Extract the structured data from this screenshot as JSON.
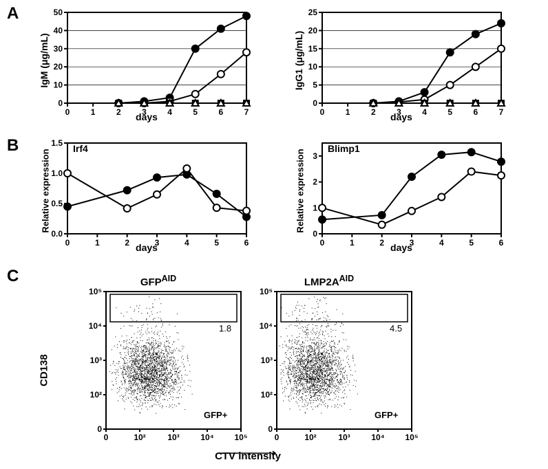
{
  "panelA": {
    "label": "A",
    "igm": {
      "ylabel": "IgM (μg/mL)",
      "xlabel": "days",
      "xlim": [
        0,
        7
      ],
      "ylim": [
        0,
        50
      ],
      "ytick_step": 10,
      "xtick_step": 1,
      "x": [
        2,
        3,
        4,
        5,
        6,
        7
      ],
      "series": [
        {
          "name": "filled-circle",
          "marker": "●",
          "color": "#000000",
          "fill": "#000000",
          "y": [
            0,
            1,
            3,
            30,
            41,
            48
          ]
        },
        {
          "name": "open-circle",
          "marker": "○",
          "color": "#000000",
          "fill": "#ffffff",
          "y": [
            0,
            0,
            1,
            5,
            16,
            28
          ]
        },
        {
          "name": "filled-square",
          "marker": "■",
          "color": "#000000",
          "fill": "#000000",
          "y": [
            0,
            0,
            0,
            0,
            0,
            0
          ]
        },
        {
          "name": "open-triangle",
          "marker": "△",
          "color": "#000000",
          "fill": "#ffffff",
          "y": [
            0,
            0,
            0,
            0,
            0,
            0
          ]
        }
      ]
    },
    "igg1": {
      "ylabel": "IgG1 (μg/mL)",
      "xlabel": "days",
      "xlim": [
        0,
        7
      ],
      "ylim": [
        0,
        25
      ],
      "ytick_step": 5,
      "xtick_step": 1,
      "x": [
        2,
        3,
        4,
        5,
        6,
        7
      ],
      "series": [
        {
          "name": "filled-circle",
          "marker": "●",
          "color": "#000000",
          "fill": "#000000",
          "y": [
            0,
            0.5,
            3,
            14,
            19,
            22
          ]
        },
        {
          "name": "open-circle",
          "marker": "○",
          "color": "#000000",
          "fill": "#ffffff",
          "y": [
            0,
            0.3,
            1,
            5,
            10,
            15
          ]
        },
        {
          "name": "filled-square",
          "marker": "■",
          "color": "#000000",
          "fill": "#000000",
          "y": [
            0,
            0,
            0,
            0,
            0,
            0
          ]
        },
        {
          "name": "open-triangle",
          "marker": "△",
          "color": "#000000",
          "fill": "#ffffff",
          "y": [
            0,
            0,
            0,
            0,
            0,
            0
          ]
        }
      ]
    }
  },
  "panelB": {
    "label": "B",
    "irf4": {
      "title": "Irf4",
      "ylabel": "Relative expression",
      "xlabel": "days",
      "xlim": [
        0,
        6
      ],
      "ylim": [
        0,
        1.5
      ],
      "ytick_step": 0.5,
      "xtick_step": 1,
      "x": [
        0,
        2,
        3,
        4,
        5,
        6
      ],
      "series": [
        {
          "name": "filled-circle",
          "marker": "●",
          "color": "#000000",
          "fill": "#000000",
          "y": [
            0.45,
            0.72,
            0.93,
            0.98,
            0.66,
            0.28
          ]
        },
        {
          "name": "open-circle",
          "marker": "○",
          "color": "#000000",
          "fill": "#ffffff",
          "y": [
            1.0,
            0.42,
            0.65,
            1.08,
            0.43,
            0.38
          ]
        }
      ],
      "error_bars": {
        "x": [
          0,
          4
        ],
        "err": [
          0.05,
          0.08
        ]
      }
    },
    "blimp1": {
      "title": "Blimp1",
      "ylabel": "Relative expression",
      "xlabel": "days",
      "xlim": [
        0,
        6
      ],
      "ylim": [
        0,
        3.5
      ],
      "ytick_step": 1,
      "xtick_step": 1,
      "x": [
        0,
        2,
        3,
        4,
        5,
        6
      ],
      "series": [
        {
          "name": "filled-circle",
          "marker": "●",
          "color": "#000000",
          "fill": "#000000",
          "y": [
            0.55,
            0.72,
            2.2,
            3.05,
            3.15,
            2.78
          ]
        },
        {
          "name": "open-circle",
          "marker": "○",
          "color": "#000000",
          "fill": "#ffffff",
          "y": [
            1.0,
            0.35,
            0.88,
            1.42,
            2.4,
            2.25
          ]
        }
      ]
    }
  },
  "panelC": {
    "label": "C",
    "ylabel": "CD138",
    "xlabel": "CTV intensity",
    "scatter": [
      {
        "title_pre": "GFP",
        "title_sup": "AID",
        "gate_value": "1.8",
        "gfp_label": "GFP+",
        "x_ticks": [
          "0",
          "10²",
          "10³",
          "10⁴",
          "10⁵"
        ],
        "y_ticks": [
          "0",
          "10²",
          "10³",
          "10⁴",
          "10⁵"
        ],
        "density_profile": "left"
      },
      {
        "title_pre": "LMP2A",
        "title_sup": "AID",
        "gate_value": "4.5",
        "gfp_label": "GFP+",
        "x_ticks": [
          "0",
          "10²",
          "10³",
          "10⁴",
          "10⁵"
        ],
        "y_ticks": [
          "0",
          "10²",
          "10³",
          "10⁴",
          "10⁵"
        ],
        "density_profile": "right"
      }
    ]
  },
  "style": {
    "bg": "#ffffff",
    "axis_color": "#000000",
    "line_width": 2,
    "marker_size": 5,
    "grid_color": "#000000",
    "font": "Arial"
  }
}
